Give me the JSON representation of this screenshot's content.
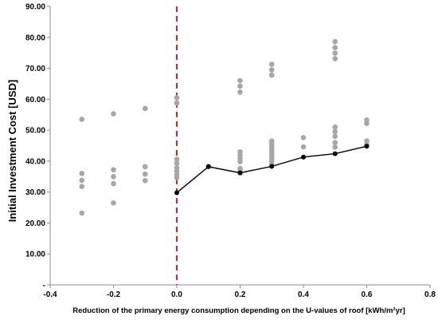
{
  "chart_data": {
    "type": "scatter",
    "xlabel": "Reduction of the primary energy consumption depending on the U-values of roof [kWh/m²yr]",
    "ylabel": "Initial Investment Cost  [USD]",
    "xlim": [
      -0.4,
      0.8
    ],
    "ylim": [
      0,
      90
    ],
    "x_ticks": [
      "-0.4",
      "-0.2",
      "0.0",
      "0.2",
      "0.4",
      "0.6",
      "0.8"
    ],
    "x_tick_values": [
      -0.4,
      -0.2,
      0,
      0.2,
      0.4,
      0.6,
      0.8
    ],
    "y_ticks": [
      "-",
      "10.00",
      "20.00",
      "30.00",
      "40.00",
      "50.00",
      "60.00",
      "70.00",
      "80.00",
      "90.00"
    ],
    "y_tick_values": [
      0,
      10,
      20,
      30,
      40,
      50,
      60,
      70,
      80,
      90
    ],
    "grid": false,
    "reference_line": {
      "x": 0,
      "style": "dashed",
      "color": "#e02020"
    },
    "series": [
      {
        "type": "scatter",
        "color": "#a6a6a6",
        "points": [
          [
            -0.3,
            53.5
          ],
          [
            -0.3,
            36.0
          ],
          [
            -0.3,
            33.8
          ],
          [
            -0.3,
            31.8
          ],
          [
            -0.3,
            23.2
          ],
          [
            -0.2,
            55.3
          ],
          [
            -0.2,
            37.2
          ],
          [
            -0.2,
            35.0
          ],
          [
            -0.2,
            32.7
          ],
          [
            -0.2,
            26.5
          ],
          [
            -0.1,
            57.0
          ],
          [
            -0.1,
            38.2
          ],
          [
            -0.1,
            35.8
          ],
          [
            -0.1,
            33.7
          ],
          [
            0.0,
            60.5
          ],
          [
            0.0,
            58.8
          ],
          [
            0.0,
            40.6
          ],
          [
            0.0,
            39.3
          ],
          [
            0.0,
            37.8
          ],
          [
            0.0,
            36.8
          ],
          [
            0.0,
            35.6
          ],
          [
            0.0,
            34.7
          ],
          [
            0.1,
            38.3
          ],
          [
            0.2,
            66.0
          ],
          [
            0.2,
            64.2
          ],
          [
            0.2,
            62.3
          ],
          [
            0.2,
            43.0
          ],
          [
            0.2,
            42.0
          ],
          [
            0.2,
            40.9
          ],
          [
            0.2,
            39.8
          ],
          [
            0.2,
            37.6
          ],
          [
            0.2,
            37.0
          ],
          [
            0.3,
            71.3
          ],
          [
            0.3,
            69.5
          ],
          [
            0.3,
            67.8
          ],
          [
            0.3,
            46.5
          ],
          [
            0.3,
            45.5
          ],
          [
            0.3,
            44.5
          ],
          [
            0.3,
            43.6
          ],
          [
            0.3,
            42.8
          ],
          [
            0.3,
            41.9
          ],
          [
            0.3,
            41.0
          ],
          [
            0.3,
            40.0
          ],
          [
            0.3,
            39.0
          ],
          [
            0.4,
            47.6
          ],
          [
            0.4,
            44.6
          ],
          [
            0.5,
            78.6
          ],
          [
            0.5,
            76.7
          ],
          [
            0.5,
            74.9
          ],
          [
            0.5,
            73.1
          ],
          [
            0.5,
            51.0
          ],
          [
            0.5,
            49.5
          ],
          [
            0.5,
            48.0
          ],
          [
            0.5,
            46.0
          ],
          [
            0.5,
            44.5
          ],
          [
            0.6,
            53.3
          ],
          [
            0.6,
            52.2
          ],
          [
            0.6,
            46.5
          ],
          [
            0.6,
            45.3
          ]
        ]
      },
      {
        "type": "line",
        "color": "#000000",
        "marker": "circle",
        "points": [
          [
            0.0,
            29.8
          ],
          [
            0.1,
            38.2
          ],
          [
            0.2,
            36.2
          ],
          [
            0.3,
            38.3
          ],
          [
            0.4,
            41.3
          ],
          [
            0.5,
            42.4
          ],
          [
            0.6,
            44.8
          ]
        ]
      }
    ]
  }
}
